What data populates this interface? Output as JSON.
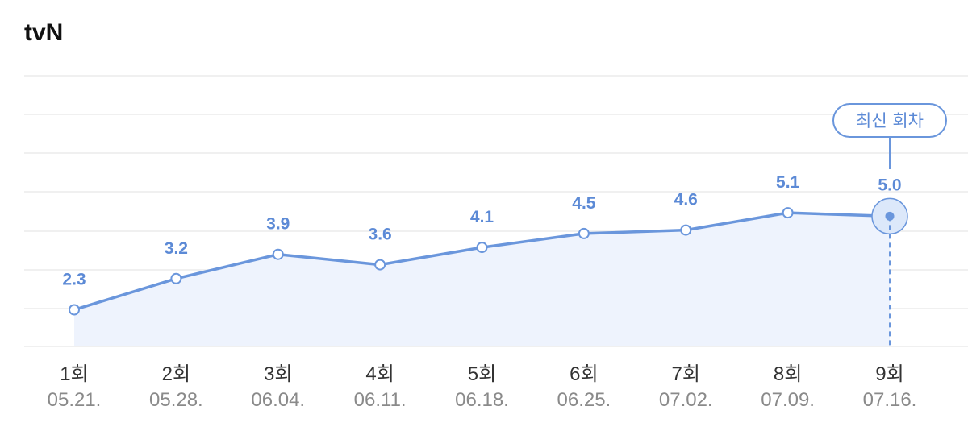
{
  "header": {
    "title": "tvN"
  },
  "chart_data": {
    "type": "line",
    "title": "tvN",
    "categories": [
      "1회",
      "2회",
      "3회",
      "4회",
      "5회",
      "6회",
      "7회",
      "8회",
      "9회"
    ],
    "dates": [
      "05.21.",
      "05.28.",
      "06.04.",
      "06.11.",
      "06.18.",
      "06.25.",
      "07.02.",
      "07.09.",
      "07.16."
    ],
    "series": [
      {
        "values": [
          2.3,
          3.2,
          3.9,
          3.6,
          4.1,
          4.5,
          4.6,
          5.1,
          5.0
        ]
      }
    ],
    "value_labels": [
      "2.3",
      "3.2",
      "3.9",
      "3.6",
      "4.1",
      "4.5",
      "4.6",
      "5.1",
      "5.0"
    ],
    "latest_index": 8,
    "latest_label": "최신 회차",
    "area_fill": true,
    "grid": true,
    "legend": "none"
  },
  "colors": {
    "line": "#6a96dc",
    "label": "#5c8ad6",
    "area": "#eef3fd",
    "grid": "#ececec",
    "point_fill": "#ffffff",
    "highlight_ring": "#dce8fa"
  }
}
